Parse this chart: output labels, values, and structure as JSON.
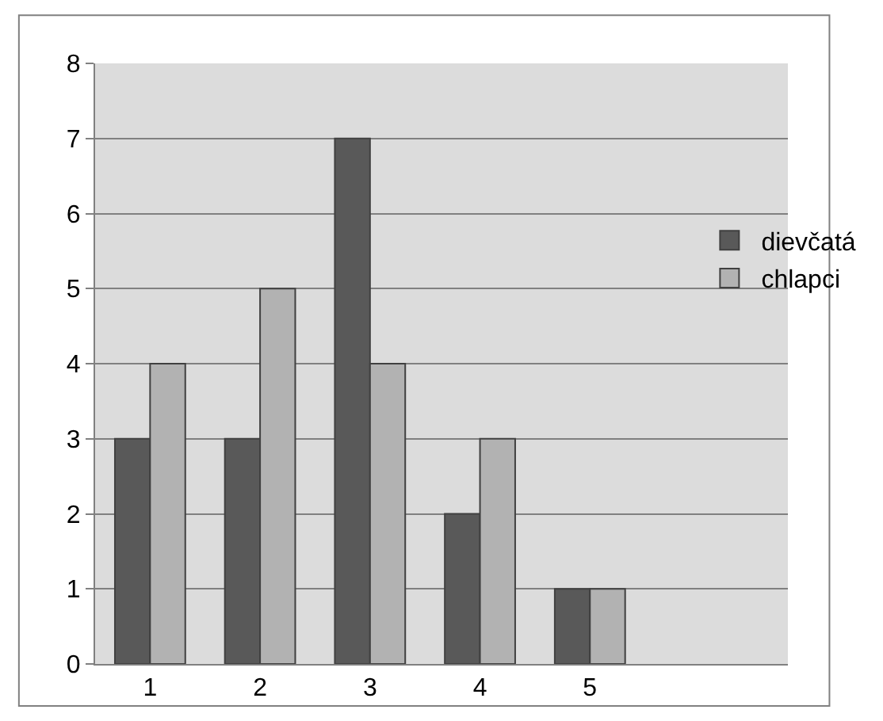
{
  "chart_data": {
    "type": "bar",
    "categories": [
      "1",
      "2",
      "3",
      "4",
      "5"
    ],
    "series": [
      {
        "name": "dievčatá",
        "color": "#595959",
        "values": [
          3,
          3,
          7,
          2,
          1
        ]
      },
      {
        "name": "chlapci",
        "color": "#b2b2b2",
        "values": [
          4,
          5,
          4,
          3,
          1
        ]
      }
    ],
    "ylim": [
      0,
      8
    ],
    "yticks": [
      0,
      1,
      2,
      3,
      4,
      5,
      6,
      7,
      8
    ],
    "grid": "y",
    "legend": "right"
  }
}
